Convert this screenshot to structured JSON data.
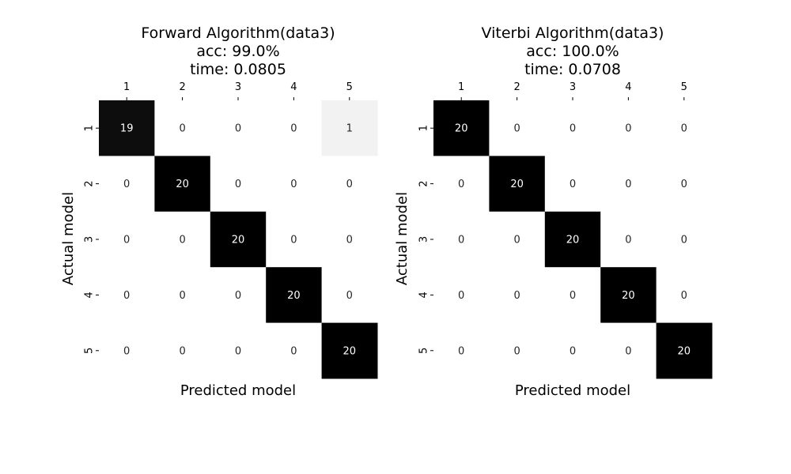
{
  "chart_data": [
    {
      "type": "heatmap",
      "title_lines": [
        "Forward Algorithm(data3)",
        "acc: 99.0%",
        "time: 0.0805"
      ],
      "xlabel": "Predicted model",
      "ylabel": "Actual model",
      "x_ticks": [
        "1",
        "2",
        "3",
        "4",
        "5"
      ],
      "y_ticks": [
        "1",
        "2",
        "3",
        "4",
        "5"
      ],
      "matrix": [
        [
          19,
          0,
          0,
          0,
          1
        ],
        [
          0,
          20,
          0,
          0,
          0
        ],
        [
          0,
          0,
          20,
          0,
          0
        ],
        [
          0,
          0,
          0,
          20,
          0
        ],
        [
          0,
          0,
          0,
          0,
          20
        ]
      ],
      "colormap": "Greys",
      "vmin": 0,
      "vmax": 20,
      "x_tick_position": "top",
      "colorbar": false
    },
    {
      "type": "heatmap",
      "title_lines": [
        "Viterbi Algorithm(data3)",
        "acc: 100.0%",
        "time: 0.0708"
      ],
      "xlabel": "Predicted model",
      "ylabel": "Actual model",
      "x_ticks": [
        "1",
        "2",
        "3",
        "4",
        "5"
      ],
      "y_ticks": [
        "1",
        "2",
        "3",
        "4",
        "5"
      ],
      "matrix": [
        [
          20,
          0,
          0,
          0,
          0
        ],
        [
          0,
          20,
          0,
          0,
          0
        ],
        [
          0,
          0,
          20,
          0,
          0
        ],
        [
          0,
          0,
          0,
          20,
          0
        ],
        [
          0,
          0,
          0,
          0,
          20
        ]
      ],
      "colormap": "Greys",
      "vmin": 0,
      "vmax": 20,
      "x_tick_position": "top",
      "colorbar": false
    }
  ]
}
